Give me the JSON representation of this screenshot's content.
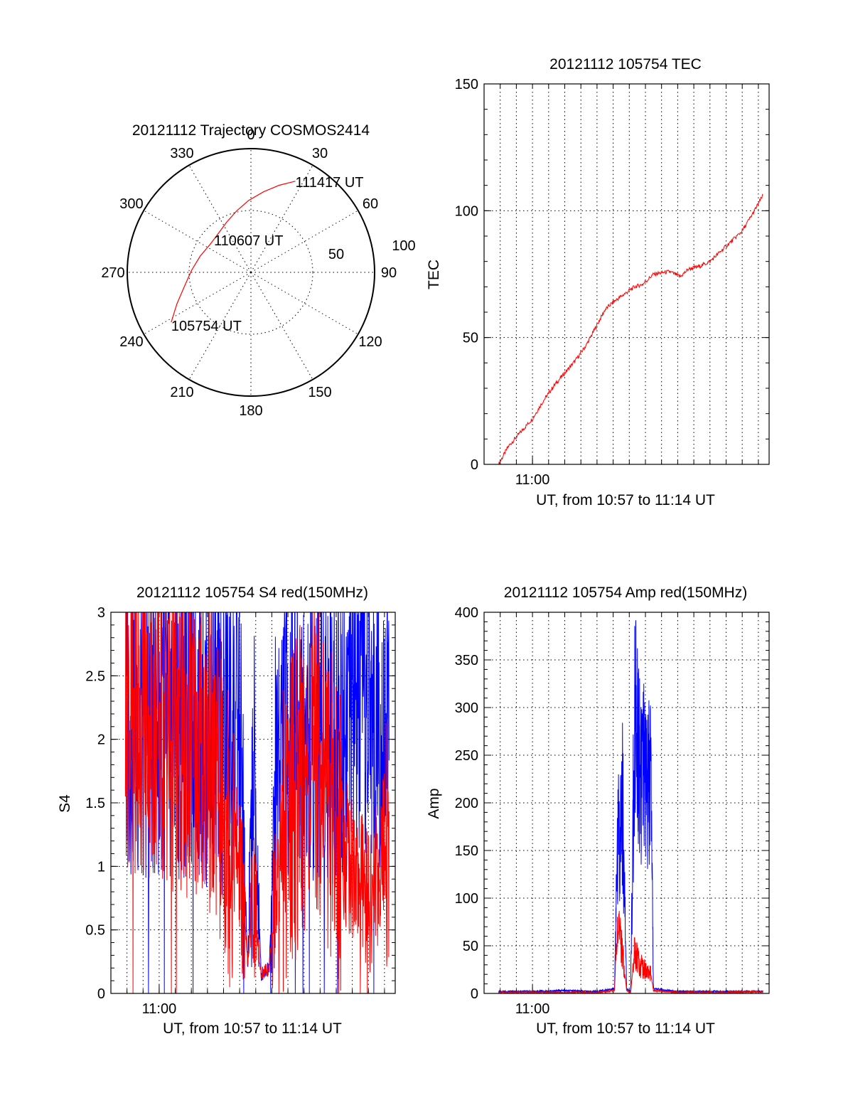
{
  "colors": {
    "red": "#ff0000",
    "blue": "#0000ff",
    "black": "#000000",
    "background": "#ffffff"
  },
  "chart_data": [
    {
      "type": "polar",
      "title": "20121112 Trajectory COSMOS2414",
      "azimuth_labels": [
        "0",
        "30",
        "60",
        "90",
        "120",
        "150",
        "180",
        "210",
        "240",
        "270",
        "300",
        "330"
      ],
      "azimuth_degrees": [
        0,
        30,
        60,
        90,
        120,
        150,
        180,
        210,
        240,
        270,
        300,
        330
      ],
      "radial_labels": [
        "50",
        "100"
      ],
      "radial_values": [
        50,
        100
      ],
      "rlim": [
        0,
        100
      ],
      "series": [
        {
          "color": "red",
          "points": [
            {
              "az": 238,
              "r": 76
            },
            {
              "az": 247,
              "r": 65
            },
            {
              "az": 258,
              "r": 55
            },
            {
              "az": 272,
              "r": 48
            },
            {
              "az": 288,
              "r": 43
            },
            {
              "az": 305,
              "r": 40
            },
            {
              "az": 320,
              "r": 41
            },
            {
              "az": 334,
              "r": 45
            },
            {
              "az": 347,
              "r": 51
            },
            {
              "az": 358,
              "r": 58
            },
            {
              "az": 9,
              "r": 66
            },
            {
              "az": 18,
              "r": 74
            },
            {
              "az": 26,
              "r": 82
            }
          ]
        }
      ],
      "annotations": [
        {
          "text": "111417 UT",
          "az": 26,
          "r": 82
        },
        {
          "text": "110607 UT",
          "az": 300,
          "r": 29
        },
        {
          "text": "105754 UT",
          "az": 238,
          "r": 76
        }
      ]
    },
    {
      "type": "line",
      "title": "20121112 105754 TEC",
      "xlabel": "UT, from 10:57 to 11:14 UT",
      "ylabel": "TEC",
      "xlim": [
        "10:57:00",
        "11:14:40"
      ],
      "ylim": [
        0,
        150
      ],
      "x_ticks": [
        "11:00"
      ],
      "y_ticks": [
        "0",
        "50",
        "100",
        "150"
      ],
      "grid": true,
      "series": [
        {
          "color": "red",
          "x": [
            "10:57:54",
            "10:58:30",
            "10:59:10",
            "11:00:00",
            "11:00:40",
            "11:01:20",
            "11:02:00",
            "11:02:40",
            "11:03:20",
            "11:04:00",
            "11:04:30",
            "11:05:00",
            "11:05:40",
            "11:06:20",
            "11:06:50",
            "11:07:30",
            "11:08:30",
            "11:09:10",
            "11:09:40",
            "11:10:20",
            "11:11:00",
            "11:11:40",
            "11:12:20",
            "11:13:00",
            "11:13:40",
            "11:14:17"
          ],
          "values": [
            0,
            7,
            12,
            18,
            25,
            31,
            36,
            41,
            47,
            55,
            61,
            64,
            67,
            70,
            71,
            75,
            76,
            74,
            77,
            78,
            80,
            84,
            88,
            92,
            99,
            106
          ]
        }
      ]
    },
    {
      "type": "line",
      "title": "20121112 105754 S4 red(150MHz)",
      "xlabel": "UT, from 10:57 to 11:14 UT",
      "ylabel": "S4",
      "xlim": [
        "10:57:00",
        "11:14:40"
      ],
      "ylim": [
        0,
        3
      ],
      "x_ticks": [
        "11:00"
      ],
      "y_ticks": [
        "0",
        "0.5",
        "1",
        "1.5",
        "2",
        "2.5",
        "3"
      ],
      "grid": true,
      "series": [
        {
          "color": "blue",
          "x": [
            "10:57:54",
            "10:59:00",
            "11:00:00",
            "11:01:00",
            "11:02:00",
            "11:03:00",
            "11:04:00",
            "11:05:00",
            "11:05:30",
            "11:05:50",
            "11:06:20",
            "11:06:50",
            "11:07:20",
            "11:08:00",
            "11:09:00",
            "11:10:00",
            "11:11:00",
            "11:12:00",
            "11:13:00",
            "11:14:17"
          ],
          "values": [
            2.2,
            2.1,
            2.2,
            2.15,
            2.2,
            2.1,
            2.0,
            2.1,
            0.2,
            1.8,
            0.15,
            0.2,
            2.0,
            2.1,
            2.1,
            2.2,
            2.1,
            2.2,
            2.2,
            2.3
          ]
        },
        {
          "color": "red",
          "x": [
            "10:57:54",
            "10:59:00",
            "11:00:00",
            "11:01:00",
            "11:02:00",
            "11:03:00",
            "11:04:00",
            "11:05:00",
            "11:05:30",
            "11:05:50",
            "11:06:20",
            "11:06:50",
            "11:07:20",
            "11:08:00",
            "11:09:00",
            "11:10:00",
            "11:11:00",
            "11:12:00",
            "11:13:00",
            "11:14:17"
          ],
          "values": [
            2.3,
            2.2,
            2.1,
            2.0,
            2.0,
            1.9,
            1.5,
            1.0,
            0.25,
            0.8,
            0.15,
            0.2,
            1.0,
            1.4,
            1.7,
            1.9,
            1.3,
            1.0,
            0.7,
            1.3
          ]
        }
      ]
    },
    {
      "type": "line",
      "title": "20121112 105754 Amp red(150MHz)",
      "xlabel": "UT, from 10:57 to 11:14 UT",
      "ylabel": "Amp",
      "xlim": [
        "10:57:00",
        "11:14:40"
      ],
      "ylim": [
        0,
        400
      ],
      "x_ticks": [
        "11:00"
      ],
      "y_ticks": [
        "0",
        "50",
        "100",
        "150",
        "200",
        "250",
        "300",
        "350",
        "400"
      ],
      "grid": true,
      "series": [
        {
          "color": "blue",
          "x": [
            "10:57:54",
            "11:00:00",
            "11:02:00",
            "11:04:00",
            "11:05:05",
            "11:05:15",
            "11:05:35",
            "11:05:50",
            "11:06:05",
            "11:06:20",
            "11:06:40",
            "11:07:00",
            "11:07:20",
            "11:07:30",
            "11:09:00",
            "11:12:00",
            "11:14:17"
          ],
          "values": [
            2,
            2,
            3,
            2,
            5,
            150,
            200,
            5,
            2,
            300,
            250,
            220,
            210,
            5,
            2,
            2,
            2
          ]
        },
        {
          "color": "red",
          "x": [
            "10:57:54",
            "11:00:00",
            "11:02:00",
            "11:04:00",
            "11:05:05",
            "11:05:15",
            "11:05:35",
            "11:05:50",
            "11:06:05",
            "11:06:20",
            "11:06:40",
            "11:07:00",
            "11:07:20",
            "11:07:30",
            "11:09:00",
            "11:12:00",
            "11:14:17"
          ],
          "values": [
            1,
            1,
            1,
            1,
            3,
            70,
            45,
            3,
            1,
            45,
            30,
            25,
            20,
            3,
            1,
            1,
            2
          ]
        }
      ]
    }
  ]
}
